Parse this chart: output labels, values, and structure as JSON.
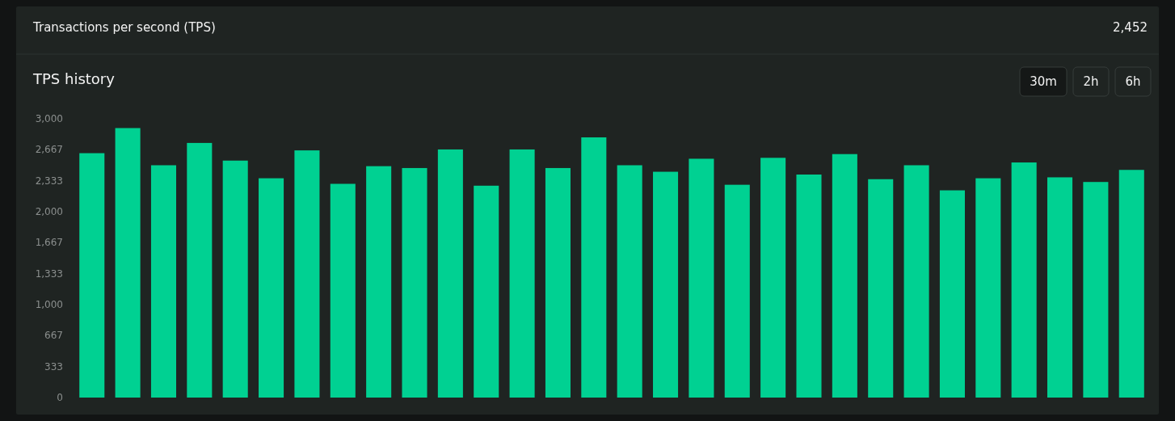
{
  "chart_data": {
    "type": "bar",
    "title": "Transactions per second (TPS)",
    "subtitle": "TPS history",
    "annotations": [
      "2,452",
      "30m",
      "2h",
      "6h"
    ],
    "categories": [
      null,
      null,
      null,
      null,
      null,
      null,
      null,
      null,
      null,
      null,
      null,
      null,
      null,
      null,
      null,
      null,
      null,
      null,
      null,
      null,
      null,
      null,
      null,
      null,
      null,
      null,
      null,
      null,
      null,
      null
    ],
    "values": [
      2630,
      2900,
      2500,
      2740,
      2550,
      2360,
      2660,
      2300,
      2490,
      2470,
      2670,
      2280,
      2670,
      2470,
      2800,
      2500,
      2430,
      2570,
      2290,
      2580,
      2400,
      2620,
      2350,
      2500,
      2230,
      2360,
      2530,
      2370,
      2320,
      2450
    ],
    "color": "#00d192",
    "ylim": [
      0,
      3000
    ],
    "yticks": [
      0,
      333,
      667,
      {
        "value": 1000,
        "label": "1,000"
      },
      {
        "value": 1333,
        "label": "1,333"
      },
      {
        "value": 1667,
        "label": "1,667"
      },
      {
        "value": 2000,
        "label": "2,000"
      },
      {
        "value": 2333,
        "label": "2,333"
      },
      {
        "value": 2667,
        "label": "2,667"
      },
      {
        "value": 3000,
        "label": "3,000"
      }
    ],
    "grid": false
  }
}
